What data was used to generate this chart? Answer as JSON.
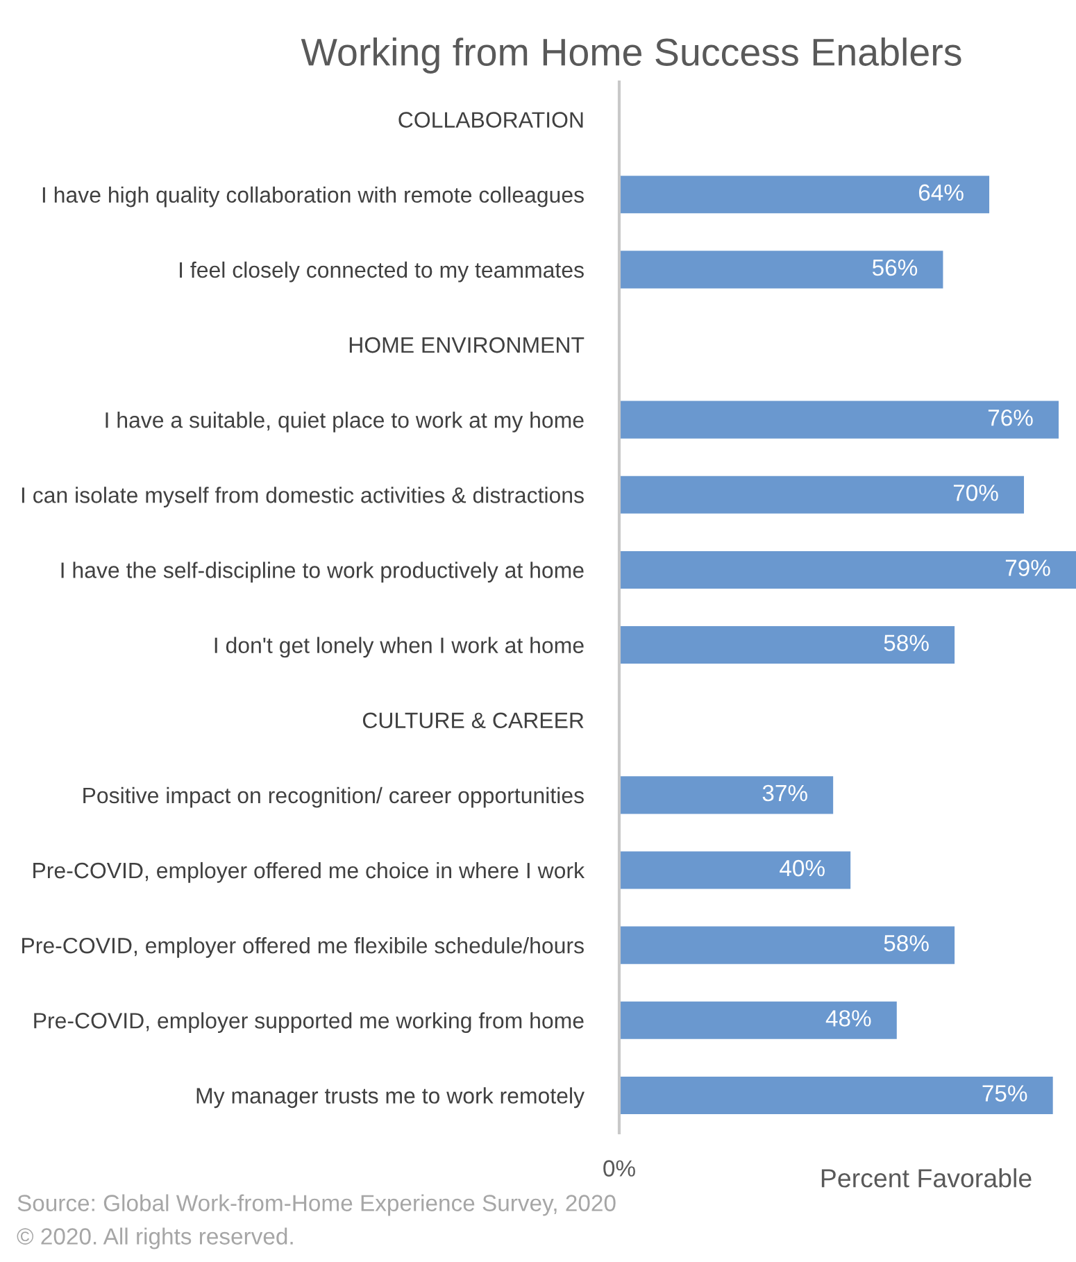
{
  "chart_data": {
    "type": "bar",
    "orientation": "horizontal",
    "title": "Working from Home Success Enablers",
    "xlabel": "Percent Favorable",
    "categories": [
      "COLLABORATION",
      "I have high quality collaboration with remote colleagues",
      "I feel closely connected to my teammates",
      "HOME ENVIRONMENT",
      "I have a suitable, quiet place to work at my home",
      "I can isolate myself from domestic activities & distractions",
      "I have the self-discipline to work productively at home",
      "I don't get lonely when I work at home",
      "CULTURE & CAREER",
      "Positive impact on recognition/ career opportunities",
      "Pre-COVID, employer offered me choice in where I work",
      "Pre-COVID, employer offered me flexibile schedule/hours",
      "Pre-COVID, employer supported me working from home",
      "My manager trusts me to work remotely"
    ],
    "values": [
      null,
      64,
      56,
      null,
      76,
      70,
      79,
      58,
      null,
      37,
      40,
      58,
      48,
      75
    ],
    "value_labels": [
      null,
      "64%",
      "56%",
      null,
      "76%",
      "70%",
      "79%",
      "58%",
      null,
      "37%",
      "40%",
      "58%",
      "48%",
      "75%"
    ],
    "color": "#6a98cf",
    "annotations": [
      "0%",
      "Source: Global Work-from-Home Experience Survey, 2020",
      "© 2020. All rights reserved."
    ]
  }
}
